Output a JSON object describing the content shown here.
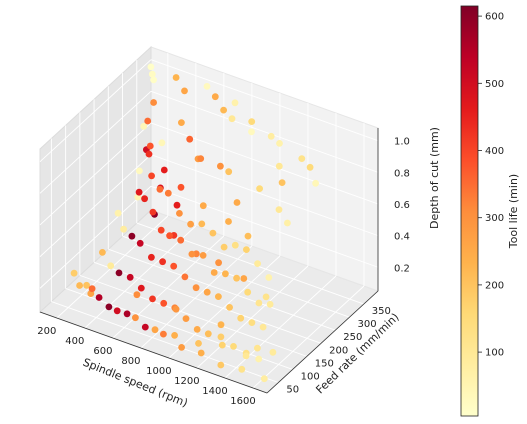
{
  "chart_data": {
    "type": "scatter",
    "title": "",
    "xlabel": "Spindle speed (rpm)",
    "ylabel": "Feed rate (mm/min)",
    "zlabel": "Depth of cut (mm)",
    "xlim": [
      80,
      1700
    ],
    "ylim": [
      10,
      400
    ],
    "zlim": [
      0.05,
      1.08
    ],
    "x_ticks": [
      200,
      400,
      600,
      800,
      1000,
      1200,
      1400,
      1600
    ],
    "y_ticks": [
      50,
      100,
      150,
      200,
      250,
      300,
      350
    ],
    "z_ticks": [
      0.2,
      0.4,
      0.6,
      0.8,
      1.0
    ],
    "colorbar": {
      "label": "Tool life (min)",
      "range": [
        5,
        615
      ],
      "ticks": [
        100,
        200,
        300,
        400,
        500,
        600
      ],
      "colormap": "YlOrRd",
      "stops": [
        "#ffffcc",
        "#ffeda0",
        "#fed976",
        "#feb24c",
        "#fd8d3c",
        "#fc4e2a",
        "#e31a1c",
        "#bd0026",
        "#800026"
      ]
    },
    "points": [
      {
        "x": 120,
        "y": 380,
        "z": 1.0,
        "c": 10
      },
      {
        "x": 150,
        "y": 370,
        "z": 0.98,
        "c": 20
      },
      {
        "x": 180,
        "y": 360,
        "z": 0.97,
        "c": 15
      },
      {
        "x": 300,
        "y": 380,
        "z": 0.99,
        "c": 230
      },
      {
        "x": 400,
        "y": 360,
        "z": 0.97,
        "c": 260
      },
      {
        "x": 600,
        "y": 370,
        "z": 0.98,
        "c": 250
      },
      {
        "x": 700,
        "y": 350,
        "z": 0.96,
        "c": 220
      },
      {
        "x": 800,
        "y": 330,
        "z": 0.97,
        "c": 100
      },
      {
        "x": 1000,
        "y": 300,
        "z": 1.0,
        "c": 30
      },
      {
        "x": 1200,
        "y": 300,
        "z": 0.99,
        "c": 60
      },
      {
        "x": 1400,
        "y": 280,
        "z": 0.99,
        "c": 120
      },
      {
        "x": 1500,
        "y": 260,
        "z": 1.0,
        "c": 150
      },
      {
        "x": 1600,
        "y": 230,
        "z": 0.98,
        "c": 40
      },
      {
        "x": 1300,
        "y": 250,
        "z": 0.96,
        "c": 100
      },
      {
        "x": 1100,
        "y": 320,
        "z": 0.97,
        "c": 80
      },
      {
        "x": 900,
        "y": 350,
        "z": 0.95,
        "c": 150
      },
      {
        "x": 500,
        "y": 390,
        "z": 0.98,
        "c": 30
      },
      {
        "x": 700,
        "y": 390,
        "z": 0.94,
        "c": 60
      },
      {
        "x": 200,
        "y": 350,
        "z": 0.85,
        "c": 310
      },
      {
        "x": 300,
        "y": 280,
        "z": 0.88,
        "c": 350
      },
      {
        "x": 500,
        "y": 300,
        "z": 0.9,
        "c": 250
      },
      {
        "x": 400,
        "y": 240,
        "z": 0.82,
        "c": 380
      },
      {
        "x": 700,
        "y": 260,
        "z": 0.8,
        "c": 280
      },
      {
        "x": 900,
        "y": 240,
        "z": 0.85,
        "c": 300
      },
      {
        "x": 1000,
        "y": 220,
        "z": 0.88,
        "c": 200
      },
      {
        "x": 1200,
        "y": 230,
        "z": 0.82,
        "c": 150
      },
      {
        "x": 1400,
        "y": 200,
        "z": 0.8,
        "c": 100
      },
      {
        "x": 1500,
        "y": 180,
        "z": 0.78,
        "c": 70
      },
      {
        "x": 1100,
        "y": 200,
        "z": 0.75,
        "c": 250
      },
      {
        "x": 800,
        "y": 220,
        "z": 0.9,
        "c": 320
      },
      {
        "x": 600,
        "y": 280,
        "z": 0.86,
        "c": 360
      },
      {
        "x": 1300,
        "y": 260,
        "z": 0.84,
        "c": 200
      },
      {
        "x": 150,
        "y": 340,
        "z": 0.7,
        "c": 40
      },
      {
        "x": 250,
        "y": 300,
        "z": 0.65,
        "c": 500
      },
      {
        "x": 350,
        "y": 260,
        "z": 0.72,
        "c": 430
      },
      {
        "x": 450,
        "y": 220,
        "z": 0.68,
        "c": 400
      },
      {
        "x": 550,
        "y": 200,
        "z": 0.66,
        "c": 350
      },
      {
        "x": 650,
        "y": 180,
        "z": 0.7,
        "c": 330
      },
      {
        "x": 750,
        "y": 170,
        "z": 0.62,
        "c": 300
      },
      {
        "x": 850,
        "y": 160,
        "z": 0.6,
        "c": 270
      },
      {
        "x": 950,
        "y": 150,
        "z": 0.65,
        "c": 220
      },
      {
        "x": 1050,
        "y": 140,
        "z": 0.64,
        "c": 200
      },
      {
        "x": 1150,
        "y": 130,
        "z": 0.6,
        "c": 180
      },
      {
        "x": 1250,
        "y": 120,
        "z": 0.66,
        "c": 130
      },
      {
        "x": 1350,
        "y": 110,
        "z": 0.68,
        "c": 170
      },
      {
        "x": 1450,
        "y": 100,
        "z": 0.64,
        "c": 90
      },
      {
        "x": 1550,
        "y": 90,
        "z": 0.6,
        "c": 60
      },
      {
        "x": 300,
        "y": 330,
        "z": 0.66,
        "c": 40
      },
      {
        "x": 500,
        "y": 240,
        "z": 0.7,
        "c": 460
      },
      {
        "x": 700,
        "y": 200,
        "z": 0.72,
        "c": 380
      },
      {
        "x": 900,
        "y": 180,
        "z": 0.7,
        "c": 250
      },
      {
        "x": 1100,
        "y": 170,
        "z": 0.68,
        "c": 240
      },
      {
        "x": 1300,
        "y": 140,
        "z": 0.7,
        "c": 210
      },
      {
        "x": 200,
        "y": 300,
        "z": 0.5,
        "c": 30
      },
      {
        "x": 300,
        "y": 250,
        "z": 0.48,
        "c": 470
      },
      {
        "x": 400,
        "y": 220,
        "z": 0.52,
        "c": 450
      },
      {
        "x": 500,
        "y": 200,
        "z": 0.5,
        "c": 420
      },
      {
        "x": 600,
        "y": 180,
        "z": 0.45,
        "c": 400
      },
      {
        "x": 700,
        "y": 160,
        "z": 0.48,
        "c": 380
      },
      {
        "x": 800,
        "y": 150,
        "z": 0.5,
        "c": 350
      },
      {
        "x": 900,
        "y": 140,
        "z": 0.46,
        "c": 300
      },
      {
        "x": 1000,
        "y": 130,
        "z": 0.5,
        "c": 280
      },
      {
        "x": 1100,
        "y": 120,
        "z": 0.44,
        "c": 250
      },
      {
        "x": 1200,
        "y": 110,
        "z": 0.48,
        "c": 230
      },
      {
        "x": 1300,
        "y": 100,
        "z": 0.5,
        "c": 200
      },
      {
        "x": 1400,
        "y": 90,
        "z": 0.46,
        "c": 150
      },
      {
        "x": 1500,
        "y": 80,
        "z": 0.44,
        "c": 110
      },
      {
        "x": 1600,
        "y": 70,
        "z": 0.48,
        "c": 90
      },
      {
        "x": 250,
        "y": 270,
        "z": 0.4,
        "c": 50
      },
      {
        "x": 450,
        "y": 230,
        "z": 0.42,
        "c": 600
      },
      {
        "x": 650,
        "y": 200,
        "z": 0.4,
        "c": 420
      },
      {
        "x": 850,
        "y": 180,
        "z": 0.38,
        "c": 320
      },
      {
        "x": 1050,
        "y": 160,
        "z": 0.42,
        "c": 300
      },
      {
        "x": 1250,
        "y": 150,
        "z": 0.4,
        "c": 260
      },
      {
        "x": 1450,
        "y": 130,
        "z": 0.38,
        "c": 120
      },
      {
        "x": 350,
        "y": 300,
        "z": 0.44,
        "c": 480
      },
      {
        "x": 550,
        "y": 260,
        "z": 0.46,
        "c": 460
      },
      {
        "x": 150,
        "y": 250,
        "z": 0.3,
        "c": 60
      },
      {
        "x": 250,
        "y": 220,
        "z": 0.28,
        "c": 80
      },
      {
        "x": 350,
        "y": 200,
        "z": 0.3,
        "c": 600
      },
      {
        "x": 450,
        "y": 180,
        "z": 0.32,
        "c": 520
      },
      {
        "x": 550,
        "y": 170,
        "z": 0.28,
        "c": 450
      },
      {
        "x": 650,
        "y": 160,
        "z": 0.3,
        "c": 430
      },
      {
        "x": 750,
        "y": 150,
        "z": 0.32,
        "c": 380
      },
      {
        "x": 850,
        "y": 140,
        "z": 0.3,
        "c": 340
      },
      {
        "x": 950,
        "y": 130,
        "z": 0.28,
        "c": 300
      },
      {
        "x": 1050,
        "y": 120,
        "z": 0.3,
        "c": 260
      },
      {
        "x": 1150,
        "y": 110,
        "z": 0.32,
        "c": 230
      },
      {
        "x": 1250,
        "y": 100,
        "z": 0.3,
        "c": 200
      },
      {
        "x": 1350,
        "y": 90,
        "z": 0.28,
        "c": 170
      },
      {
        "x": 1450,
        "y": 80,
        "z": 0.3,
        "c": 140
      },
      {
        "x": 1550,
        "y": 70,
        "z": 0.32,
        "c": 100
      },
      {
        "x": 200,
        "y": 170,
        "z": 0.2,
        "c": 220
      },
      {
        "x": 300,
        "y": 150,
        "z": 0.18,
        "c": 90
      },
      {
        "x": 400,
        "y": 130,
        "z": 0.2,
        "c": 600
      },
      {
        "x": 500,
        "y": 120,
        "z": 0.22,
        "c": 520
      },
      {
        "x": 600,
        "y": 110,
        "z": 0.2,
        "c": 470
      },
      {
        "x": 700,
        "y": 100,
        "z": 0.18,
        "c": 420
      },
      {
        "x": 800,
        "y": 90,
        "z": 0.2,
        "c": 380
      },
      {
        "x": 900,
        "y": 80,
        "z": 0.22,
        "c": 320
      },
      {
        "x": 1000,
        "y": 70,
        "z": 0.2,
        "c": 280
      },
      {
        "x": 1100,
        "y": 60,
        "z": 0.18,
        "c": 250
      },
      {
        "x": 1200,
        "y": 50,
        "z": 0.2,
        "c": 210
      },
      {
        "x": 1300,
        "y": 45,
        "z": 0.22,
        "c": 180
      },
      {
        "x": 1400,
        "y": 40,
        "z": 0.2,
        "c": 150
      },
      {
        "x": 1500,
        "y": 35,
        "z": 0.18,
        "c": 100
      },
      {
        "x": 1600,
        "y": 30,
        "z": 0.2,
        "c": 60
      },
      {
        "x": 100,
        "y": 120,
        "z": 0.12,
        "c": 180
      },
      {
        "x": 180,
        "y": 100,
        "z": 0.1,
        "c": 220
      },
      {
        "x": 300,
        "y": 80,
        "z": 0.12,
        "c": 260
      },
      {
        "x": 450,
        "y": 70,
        "z": 0.1,
        "c": 600
      },
      {
        "x": 600,
        "y": 60,
        "z": 0.12,
        "c": 560
      },
      {
        "x": 750,
        "y": 50,
        "z": 0.1,
        "c": 520
      },
      {
        "x": 900,
        "y": 40,
        "z": 0.12,
        "c": 330
      },
      {
        "x": 1050,
        "y": 30,
        "z": 0.1,
        "c": 280
      },
      {
        "x": 1200,
        "y": 25,
        "z": 0.12,
        "c": 240
      },
      {
        "x": 1350,
        "y": 20,
        "z": 0.1,
        "c": 190
      },
      {
        "x": 1500,
        "y": 20,
        "z": 0.12,
        "c": 120
      },
      {
        "x": 1650,
        "y": 25,
        "z": 0.1,
        "c": 80
      },
      {
        "x": 250,
        "y": 90,
        "z": 0.14,
        "c": 200
      },
      {
        "x": 400,
        "y": 60,
        "z": 0.16,
        "c": 550
      },
      {
        "x": 550,
        "y": 50,
        "z": 0.14,
        "c": 500
      },
      {
        "x": 700,
        "y": 40,
        "z": 0.16,
        "c": 300
      },
      {
        "x": 850,
        "y": 35,
        "z": 0.14,
        "c": 260
      },
      {
        "x": 1000,
        "y": 30,
        "z": 0.16,
        "c": 240
      },
      {
        "x": 1150,
        "y": 40,
        "z": 0.14,
        "c": 200
      },
      {
        "x": 1300,
        "y": 50,
        "z": 0.16,
        "c": 170
      },
      {
        "x": 1450,
        "y": 60,
        "z": 0.14,
        "c": 130
      },
      {
        "x": 1600,
        "y": 80,
        "z": 0.16,
        "c": 90
      },
      {
        "x": 350,
        "y": 60,
        "z": 0.2,
        "c": 350
      },
      {
        "x": 650,
        "y": 70,
        "z": 0.24,
        "c": 310
      },
      {
        "x": 950,
        "y": 60,
        "z": 0.26,
        "c": 290
      },
      {
        "x": 1250,
        "y": 70,
        "z": 0.24,
        "c": 230
      },
      {
        "x": 1550,
        "y": 50,
        "z": 0.22,
        "c": 110
      }
    ]
  }
}
